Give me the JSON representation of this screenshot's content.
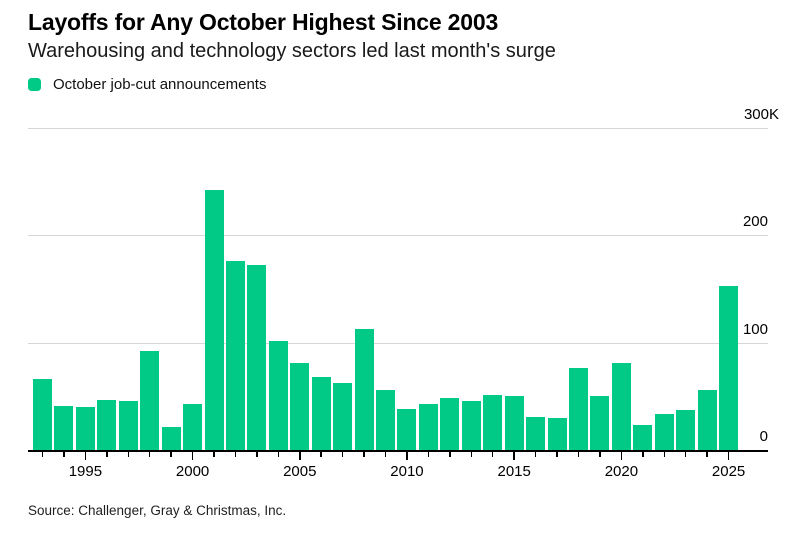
{
  "header": {
    "title": "Layoffs for Any October Highest Since 2003",
    "subtitle": "Warehousing and technology sectors led last month's surge"
  },
  "legend": {
    "label": "October job-cut announcements",
    "swatch_color": "#01c986"
  },
  "source_note": "Source: Challenger, Gray & Christmas, Inc.",
  "colors": {
    "bar": "#01c986",
    "gridline": "#d7d7d7",
    "axis": "#000000",
    "text": "#000000"
  },
  "chart_data": {
    "type": "bar",
    "title": "Layoffs for Any October Highest Since 2003",
    "subtitle": "Warehousing and technology sectors led last month's surge",
    "legend_entries": [
      "October job-cut announcements"
    ],
    "legend_position": "top-left",
    "unit": "thousands of announced job cuts",
    "x": [
      1993,
      1994,
      1995,
      1996,
      1997,
      1998,
      1999,
      2000,
      2001,
      2002,
      2003,
      2004,
      2005,
      2006,
      2007,
      2008,
      2009,
      2010,
      2011,
      2012,
      2013,
      2014,
      2015,
      2016,
      2017,
      2018,
      2019,
      2020,
      2021,
      2022,
      2023,
      2024,
      2025
    ],
    "values": [
      66,
      41,
      40,
      47,
      46,
      92,
      21,
      43,
      242,
      176,
      172,
      102,
      81,
      68,
      62,
      113,
      56,
      38,
      43,
      48,
      46,
      51,
      50,
      31,
      30,
      76,
      50,
      81,
      23,
      34,
      37,
      56,
      153
    ],
    "ylim": [
      0,
      300
    ],
    "yticks": [
      {
        "value": 0,
        "label": "0"
      },
      {
        "value": 100,
        "label": "100"
      },
      {
        "value": 200,
        "label": "200"
      },
      {
        "value": 300,
        "label": "300K"
      }
    ],
    "xticks_labeled": [
      1995,
      2000,
      2005,
      2010,
      2015,
      2020,
      2025
    ],
    "grid": "horizontal",
    "bar_color": "#01c986"
  }
}
